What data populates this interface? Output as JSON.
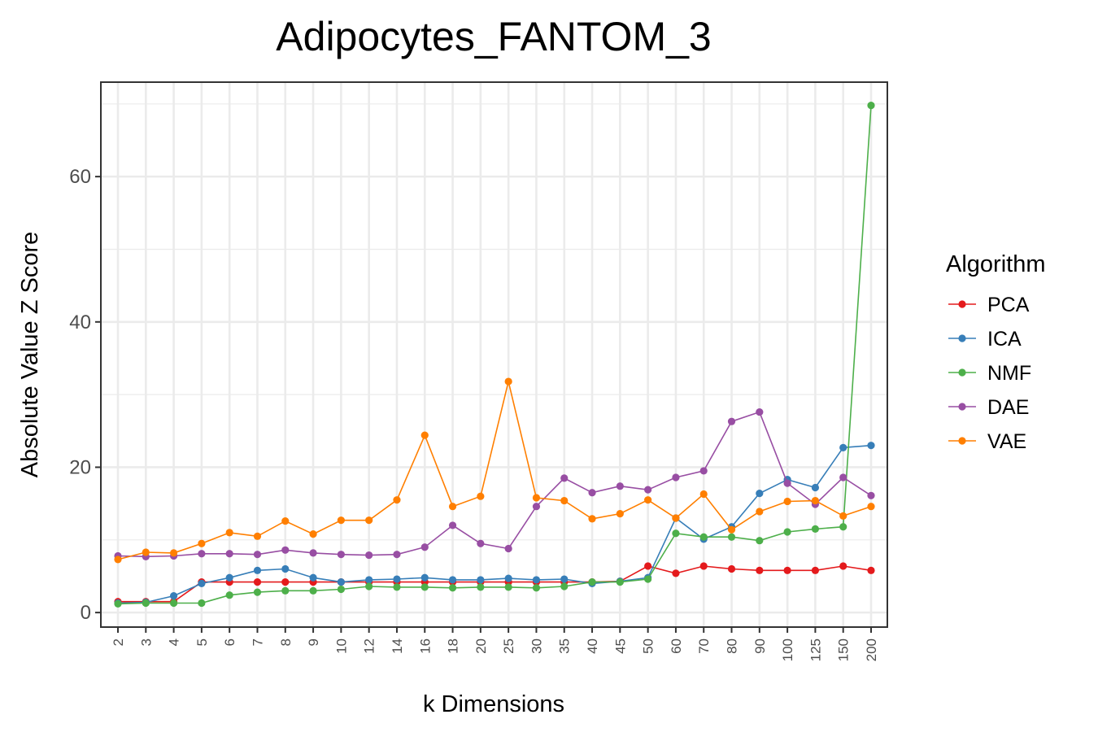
{
  "chart_data": {
    "type": "line",
    "title": "Adipocytes_FANTOM_3",
    "xlabel": "k Dimensions",
    "ylabel": "Absolute Value Z Score",
    "categories": [
      "2",
      "3",
      "4",
      "5",
      "6",
      "7",
      "8",
      "9",
      "10",
      "12",
      "14",
      "16",
      "18",
      "20",
      "25",
      "30",
      "35",
      "40",
      "45",
      "50",
      "60",
      "70",
      "80",
      "90",
      "100",
      "125",
      "150",
      "200"
    ],
    "ylim": [
      -2,
      73
    ],
    "yticks": [
      0,
      20,
      40,
      60
    ],
    "ytick_labels": [
      "0",
      "20",
      "40",
      "60"
    ],
    "grid": true,
    "legend": {
      "title": "Algorithm",
      "placement": "right"
    },
    "series": [
      {
        "name": "PCA",
        "color": "#e41a1c",
        "values": [
          1.5,
          1.5,
          1.5,
          4.2,
          4.2,
          4.2,
          4.2,
          4.2,
          4.2,
          4.2,
          4.2,
          4.2,
          4.2,
          4.2,
          4.2,
          4.2,
          4.2,
          4.2,
          4.3,
          6.4,
          5.4,
          6.4,
          6.0,
          5.8,
          5.8,
          5.8,
          6.4,
          5.8
        ]
      },
      {
        "name": "ICA",
        "color": "#377eb8",
        "values": [
          1.3,
          1.4,
          2.3,
          4.0,
          4.8,
          5.8,
          6.0,
          4.8,
          4.2,
          4.5,
          4.6,
          4.8,
          4.5,
          4.5,
          4.7,
          4.5,
          4.6,
          4.0,
          4.3,
          4.8,
          13.0,
          10.1,
          11.8,
          16.4,
          18.3,
          17.2,
          22.7,
          23.0
        ]
      },
      {
        "name": "NMF",
        "color": "#4daf4a",
        "values": [
          1.2,
          1.3,
          1.3,
          1.3,
          2.4,
          2.8,
          3.0,
          3.0,
          3.2,
          3.6,
          3.5,
          3.5,
          3.4,
          3.5,
          3.5,
          3.4,
          3.6,
          4.2,
          4.2,
          4.6,
          10.9,
          10.4,
          10.4,
          9.9,
          11.1,
          11.5,
          11.8,
          69.8
        ]
      },
      {
        "name": "DAE",
        "color": "#984ea3",
        "values": [
          7.8,
          7.7,
          7.8,
          8.1,
          8.1,
          8.0,
          8.6,
          8.2,
          8.0,
          7.9,
          8.0,
          9.0,
          12.0,
          9.5,
          8.8,
          14.6,
          18.5,
          16.5,
          17.4,
          16.9,
          18.6,
          19.5,
          26.3,
          27.6,
          17.8,
          14.9,
          18.6,
          16.1
        ]
      },
      {
        "name": "VAE",
        "color": "#ff7f00",
        "values": [
          7.3,
          8.3,
          8.2,
          9.5,
          11.0,
          10.5,
          12.6,
          10.8,
          12.7,
          12.7,
          15.5,
          24.4,
          14.6,
          16.0,
          31.8,
          15.8,
          15.4,
          12.9,
          13.6,
          15.5,
          13.0,
          16.3,
          11.4,
          13.9,
          15.3,
          15.4,
          13.3,
          14.6
        ]
      }
    ]
  }
}
